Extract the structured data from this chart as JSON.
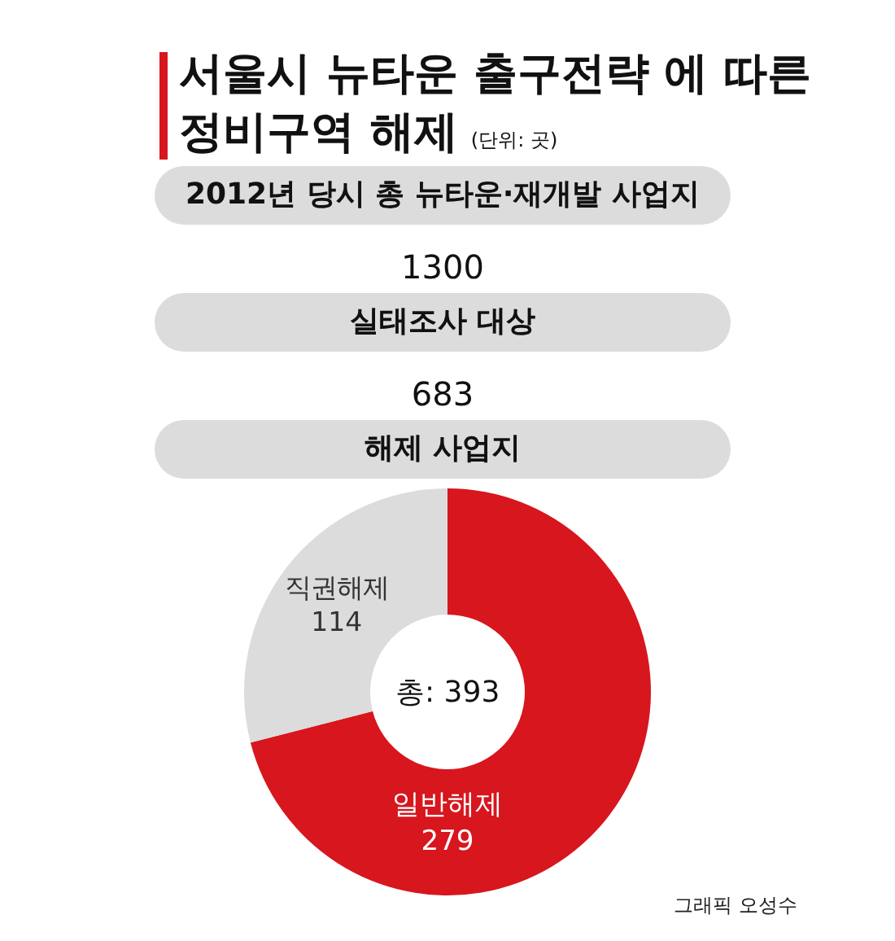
{
  "chart_data": {
    "type": "donut",
    "title": "서울시 뉴타운 출구전략 에 따른\n정비구역 해제",
    "subtitle": "(단위: 곳)",
    "categories": [
      "일반해제",
      "직권해제"
    ],
    "values": [
      279,
      114
    ],
    "colors": [
      "#d7161e",
      "#dcdcdc"
    ],
    "data_labels": true,
    "annotations": [
      "2012년 당시 총 뉴타운·재개발 사업지",
      "1300",
      "실태조사 대상",
      "683",
      "해제 사업지",
      "총: 393",
      "그래픽 오성수"
    ]
  }
}
